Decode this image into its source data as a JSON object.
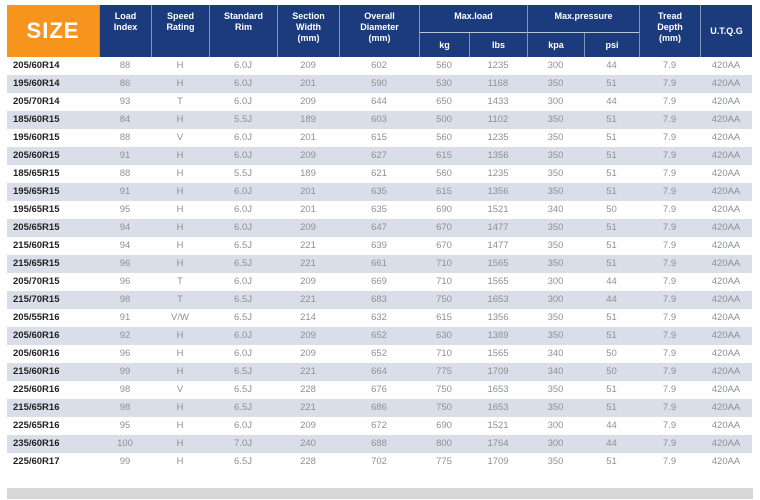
{
  "table": {
    "size_header": "SIZE",
    "headers": {
      "load_index": "Load\nIndex",
      "speed_rating": "Speed\nRating",
      "standard_rim": "Standard\nRim",
      "section_width": "Section\nWidth\n(mm)",
      "overall_diameter": "Overall\nDiameter\n(mm)",
      "max_load": "Max.load",
      "max_load_kg": "kg",
      "max_load_lbs": "lbs",
      "max_pressure": "Max.pressure",
      "max_pressure_kpa": "kpa",
      "max_pressure_psi": "psi",
      "tread_depth": "Tread\nDepth\n(mm)",
      "utqg": "U.T.Q.G"
    },
    "rows": [
      [
        "205/60R14",
        "88",
        "H",
        "6.0J",
        "209",
        "602",
        "560",
        "1235",
        "300",
        "44",
        "7.9",
        "420AA"
      ],
      [
        "195/60R14",
        "86",
        "H",
        "6.0J",
        "201",
        "590",
        "530",
        "1168",
        "350",
        "51",
        "7.9",
        "420AA"
      ],
      [
        "205/70R14",
        "93",
        "T",
        "6.0J",
        "209",
        "644",
        "650",
        "1433",
        "300",
        "44",
        "7.9",
        "420AA"
      ],
      [
        "185/60R15",
        "84",
        "H",
        "5.5J",
        "189",
        "603",
        "500",
        "1102",
        "350",
        "51",
        "7.9",
        "420AA"
      ],
      [
        "195/60R15",
        "88",
        "V",
        "6.0J",
        "201",
        "615",
        "560",
        "1235",
        "350",
        "51",
        "7.9",
        "420AA"
      ],
      [
        "205/60R15",
        "91",
        "H",
        "6.0J",
        "209",
        "627",
        "615",
        "1356",
        "350",
        "51",
        "7.9",
        "420AA"
      ],
      [
        "185/65R15",
        "88",
        "H",
        "5.5J",
        "189",
        "621",
        "560",
        "1235",
        "350",
        "51",
        "7.9",
        "420AA"
      ],
      [
        "195/65R15",
        "91",
        "H",
        "6.0J",
        "201",
        "635",
        "615",
        "1356",
        "350",
        "51",
        "7.9",
        "420AA"
      ],
      [
        "195/65R15",
        "95",
        "H",
        "6.0J",
        "201",
        "635",
        "690",
        "1521",
        "340",
        "50",
        "7.9",
        "420AA"
      ],
      [
        "205/65R15",
        "94",
        "H",
        "6.0J",
        "209",
        "647",
        "670",
        "1477",
        "350",
        "51",
        "7.9",
        "420AA"
      ],
      [
        "215/60R15",
        "94",
        "H",
        "6.5J",
        "221",
        "639",
        "670",
        "1477",
        "350",
        "51",
        "7.9",
        "420AA"
      ],
      [
        "215/65R15",
        "96",
        "H",
        "6.5J",
        "221",
        "661",
        "710",
        "1565",
        "350",
        "51",
        "7.9",
        "420AA"
      ],
      [
        "205/70R15",
        "96",
        "T",
        "6.0J",
        "209",
        "669",
        "710",
        "1565",
        "300",
        "44",
        "7.9",
        "420AA"
      ],
      [
        "215/70R15",
        "98",
        "T",
        "6.5J",
        "221",
        "683",
        "750",
        "1653",
        "300",
        "44",
        "7.9",
        "420AA"
      ],
      [
        "205/55R16",
        "91",
        "V/W",
        "6.5J",
        "214",
        "632",
        "615",
        "1356",
        "350",
        "51",
        "7.9",
        "420AA"
      ],
      [
        "205/60R16",
        "92",
        "H",
        "6.0J",
        "209",
        "652",
        "630",
        "1389",
        "350",
        "51",
        "7.9",
        "420AA"
      ],
      [
        "205/60R16",
        "96",
        "H",
        "6.0J",
        "209",
        "652",
        "710",
        "1565",
        "340",
        "50",
        "7.9",
        "420AA"
      ],
      [
        "215/60R16",
        "99",
        "H",
        "6.5J",
        "221",
        "664",
        "775",
        "1709",
        "340",
        "50",
        "7.9",
        "420AA"
      ],
      [
        "225/60R16",
        "98",
        "V",
        "6.5J",
        "228",
        "676",
        "750",
        "1653",
        "350",
        "51",
        "7.9",
        "420AA"
      ],
      [
        "215/65R16",
        "98",
        "H",
        "6.5J",
        "221",
        "686",
        "750",
        "1653",
        "350",
        "51",
        "7.9",
        "420AA"
      ],
      [
        "225/65R16",
        "95",
        "H",
        "6.0J",
        "209",
        "672",
        "690",
        "1521",
        "300",
        "44",
        "7.9",
        "420AA"
      ],
      [
        "235/60R16",
        "100",
        "H",
        "7.0J",
        "240",
        "688",
        "800",
        "1764",
        "300",
        "44",
        "7.9",
        "420AA"
      ],
      [
        "225/60R17",
        "99",
        "H",
        "6.5J",
        "228",
        "702",
        "775",
        "1709",
        "350",
        "51",
        "7.9",
        "420AA"
      ]
    ]
  },
  "colors": {
    "header_bg": "#1b3b7d",
    "size_bg": "#f7941e",
    "alt_row_bg": "#d9dee8",
    "data_text": "#8e9094",
    "size_text": "#222222",
    "bottom_bar": "#d7d7d7"
  }
}
